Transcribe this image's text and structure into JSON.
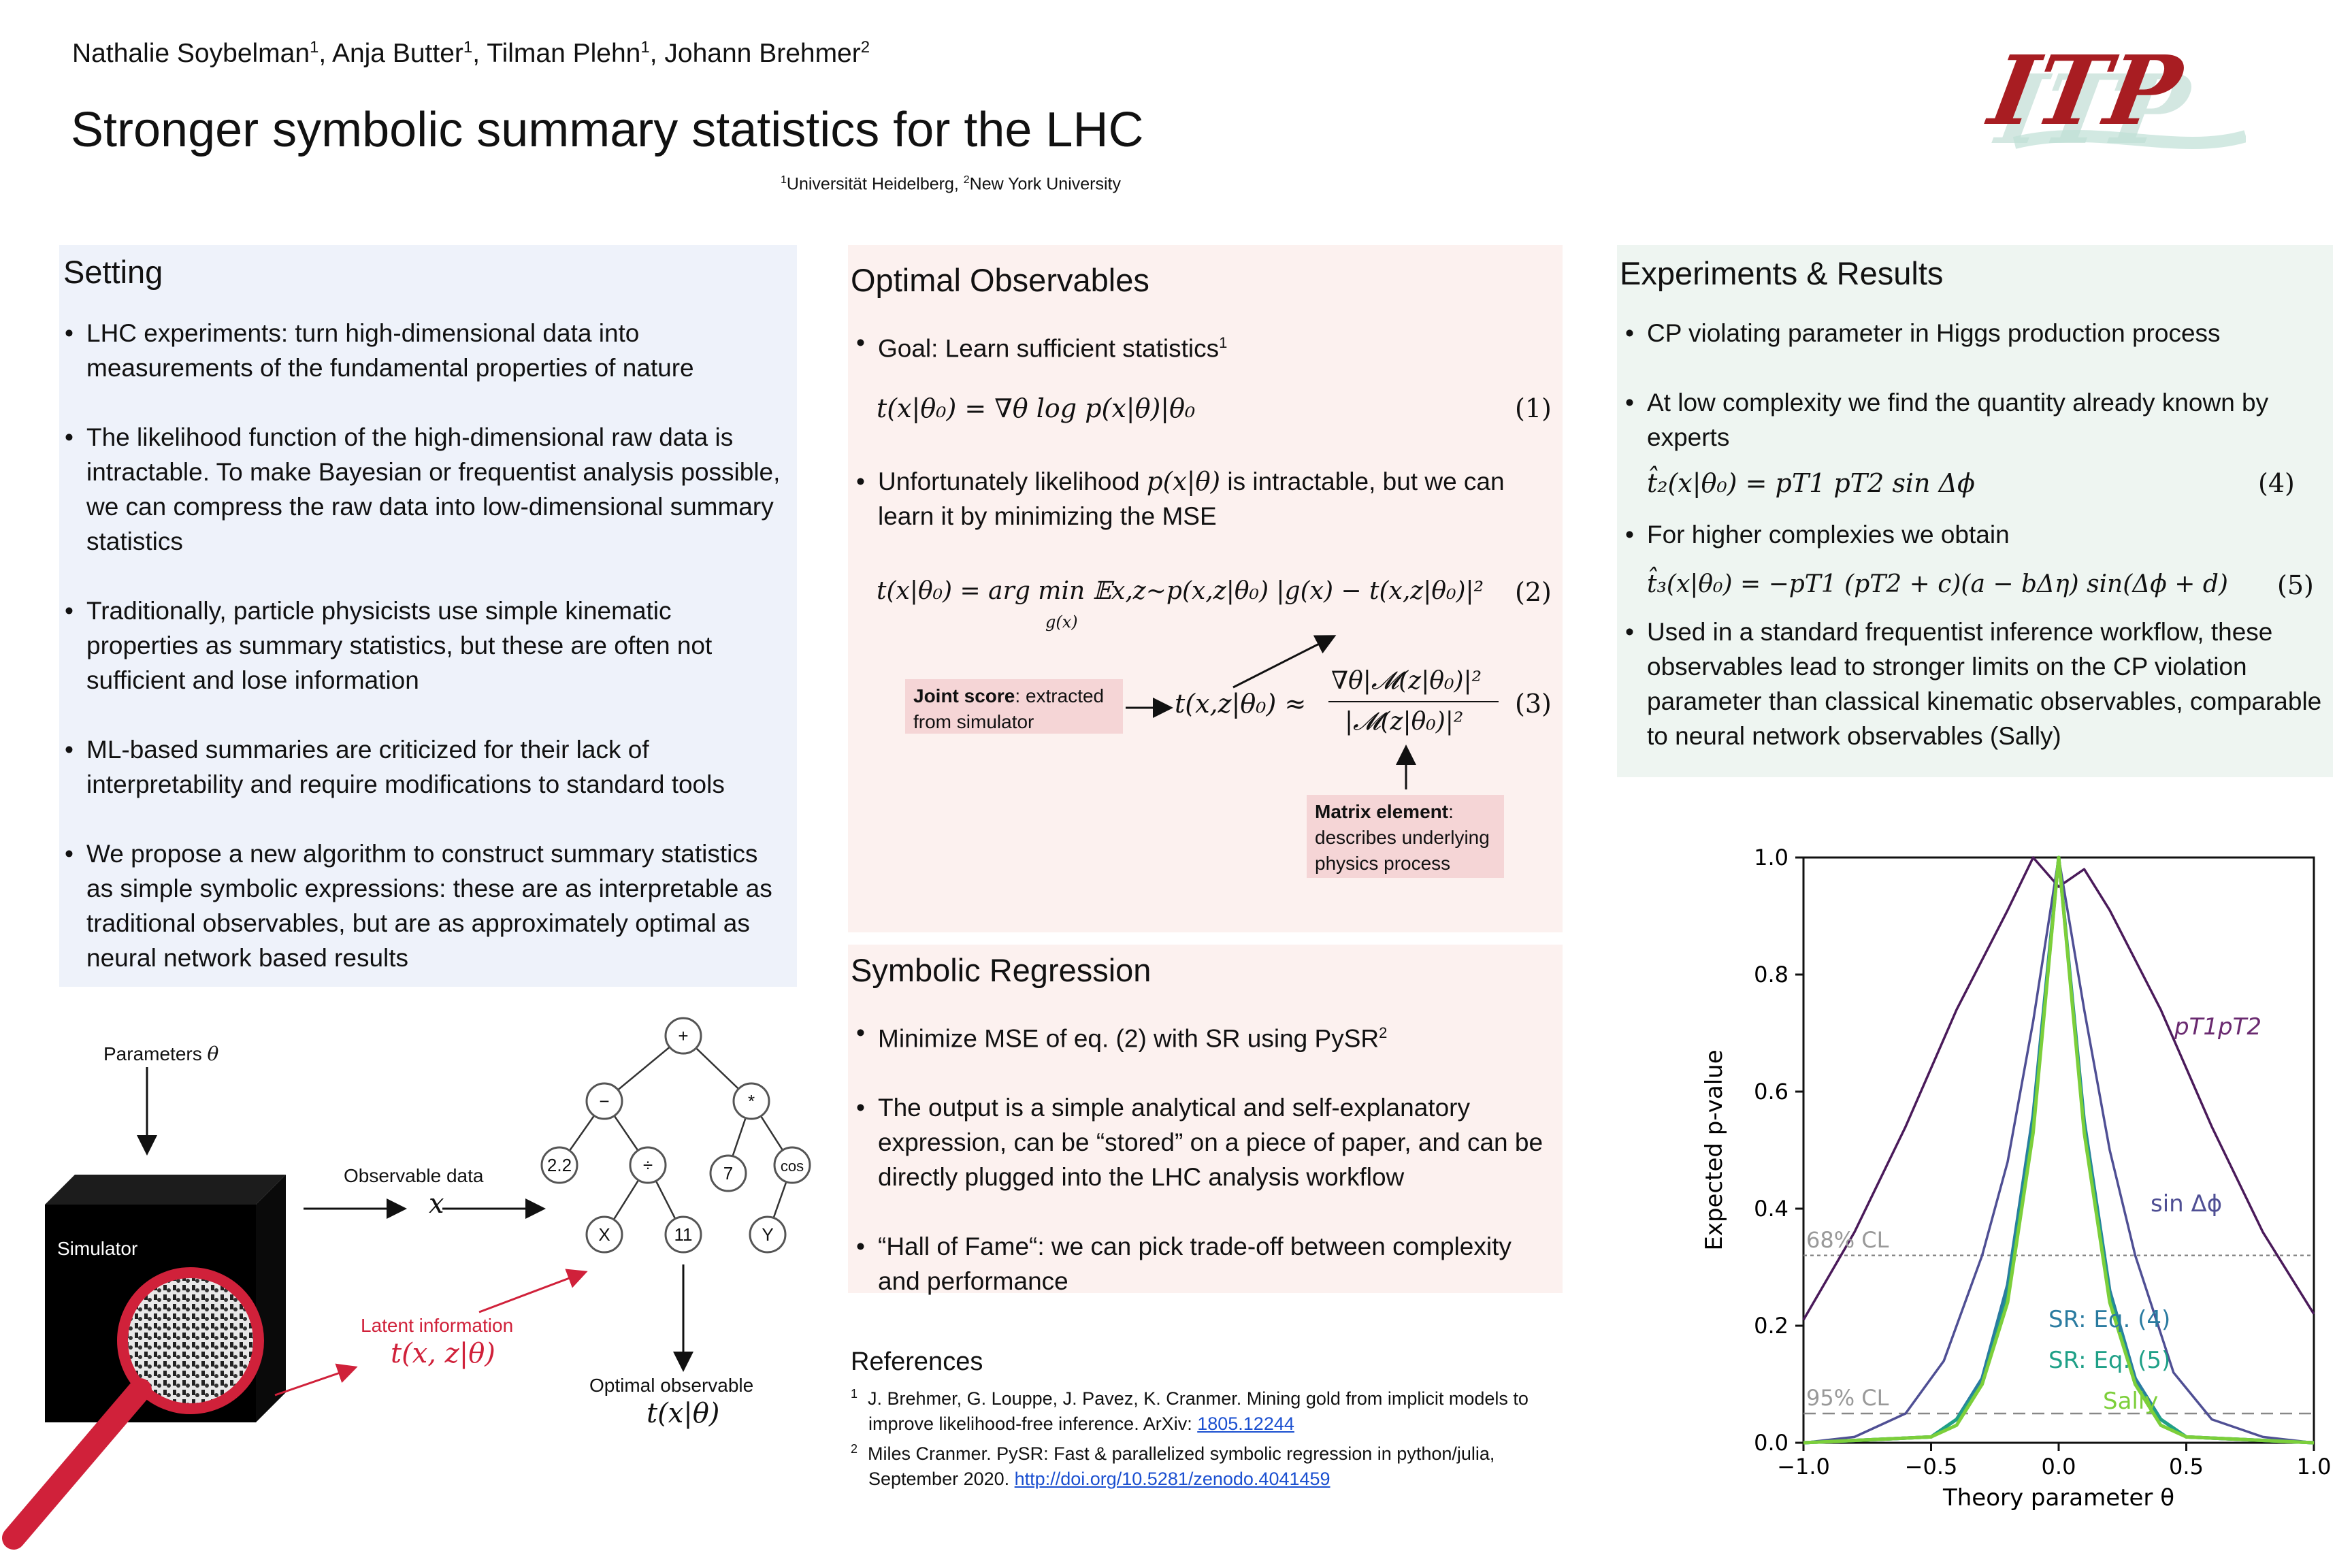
{
  "header": {
    "authors": [
      {
        "name": "Nathalie Soybelman",
        "aff": "1"
      },
      {
        "name": "Anja Butter",
        "aff": "1"
      },
      {
        "name": "Tilman Plehn",
        "aff": "1"
      },
      {
        "name": "Johann Brehmer",
        "aff": "2"
      }
    ],
    "title": "Stronger symbolic summary statistics for the LHC",
    "affiliations": [
      {
        "mark": "1",
        "name": "Universität Heidelberg"
      },
      {
        "mark": "2",
        "name": "New York University"
      }
    ],
    "logo_text": "ITP"
  },
  "setting": {
    "heading": "Setting",
    "bullets": [
      "LHC experiments: turn high-dimensional data into measurements of the fundamental properties of nature",
      "The likelihood function of the high-dimensional raw data is intractable. To make Bayesian or frequentist analysis possible, we can compress the raw data into low-dimensional summary statistics",
      "Traditionally, particle physicists use simple kinematic properties as summary statistics, but these are often not sufficient and lose information",
      "ML-based summaries are criticized for their lack of interpretability and require modifications to standard tools",
      "We propose a new algorithm to construct summary statistics as simple symbolic expressions: these are as interpretable as traditional observables, but are as approximately optimal as neural network based results"
    ]
  },
  "optimal": {
    "heading": "Optimal Observables",
    "goal": "Goal: Learn sufficient statistics",
    "goal_ref": "1",
    "eq1": "t(x|θ₀) = ∇θ log p(x|θ)|θ₀",
    "eq1_num": "(1)",
    "unfortunately_a": "Unfortunately likelihood",
    "unfortunately_math": "p(x|θ)",
    "unfortunately_b": "is intractable, but we can learn it by minimizing the MSE",
    "eq2": "t(x|θ₀) = arg min 𝔼x,z∼p(x,z|θ₀) |g(x) − t(x,z|θ₀)|²",
    "eq2_sub": "g(x)",
    "eq2_num": "(2)",
    "eq3_lhs": "t(x,z|θ₀) ≈",
    "eq3_num_top": "∇θ|𝓜(z|θ₀)|²",
    "eq3_den": "|𝓜(z|θ₀)|²",
    "eq3_num": "(3)",
    "joint_score_bold": "Joint score",
    "joint_score_rest": ": extracted from simulator",
    "matrix_bold": "Matrix element",
    "matrix_rest": ": describes underlying physics process"
  },
  "symbolic": {
    "heading": "Symbolic Regression",
    "bullets": [
      {
        "text": "Minimize MSE of eq. (2) with SR using PySR",
        "sup": "2"
      },
      {
        "text": "The output is a simple analytical and self-explanatory expression, can be “stored” on a piece of paper, and can be directly plugged into the LHC analysis workflow",
        "sup": ""
      },
      {
        "text": "“Hall of Fame“: we can pick trade-off between complexity and performance",
        "sup": ""
      }
    ]
  },
  "references": {
    "heading": "References",
    "items": [
      {
        "mark": "1",
        "text": "J. Brehmer, G. Louppe, J. Pavez, K. Cranmer. Mining gold from implicit models to improve likelihood-free inference. ArXiv: ",
        "link": "1805.12244"
      },
      {
        "mark": "2",
        "text": "Miles Cranmer. PySR: Fast & parallelized symbolic regression in python/julia, September 2020. ",
        "link": "http://doi.org/10.5281/zenodo.4041459"
      }
    ]
  },
  "results": {
    "heading": "Experiments & Results",
    "b1": "CP violating parameter in Higgs production process",
    "b2": "At low complexity we find the quantity already known by experts",
    "eq4": "t̂₂(x|θ₀) = pT1 pT2 sin Δϕ",
    "eq4_num": "(4)",
    "b3": "For higher complexies we obtain",
    "eq5": "t̂₃(x|θ₀) = −pT1 (pT2 + c)(a − bΔη) sin(Δϕ + d)",
    "eq5_num": "(5)",
    "b4": "Used in a standard frequentist inference workflow, these observables lead to stronger limits on the CP violation parameter than classical kinematic observables, comparable to neural network observables (Sally)"
  },
  "diagram": {
    "parameters_label": "Parameters",
    "parameters_math": "θ",
    "simulator_label": "Simulator",
    "observable_label": "Observable data",
    "observable_math": "x",
    "latent_label": "Latent information",
    "latent_math": "t(x, z|θ)",
    "optimal_label": "Optimal observable",
    "optimal_math": "t(x|θ)",
    "tree_nodes": [
      "+",
      "−",
      "*",
      "2.2",
      "÷",
      "7",
      "cos",
      "X",
      "11",
      "Y"
    ],
    "colors": {
      "red": "#d0213a",
      "black": "#000000"
    }
  },
  "chart_data": {
    "type": "line",
    "xlabel": "Theory parameter θ",
    "ylabel": "Expected p-value",
    "xlim": [
      -1.0,
      1.0
    ],
    "ylim": [
      0.0,
      1.0
    ],
    "xticks": [
      "−1.0",
      "−0.5",
      "0.0",
      "0.5",
      "1.0"
    ],
    "yticks": [
      "0.0",
      "0.2",
      "0.4",
      "0.6",
      "0.8",
      "1.0"
    ],
    "hlines": [
      {
        "label": "68% CL",
        "y": 0.32
      },
      {
        "label": "95% CL",
        "y": 0.05
      }
    ],
    "series": [
      {
        "name": "pT1pT2",
        "color": "#4a1a5a",
        "x": [
          -1.0,
          -0.8,
          -0.6,
          -0.4,
          -0.2,
          -0.1,
          0.0,
          0.1,
          0.2,
          0.4,
          0.6,
          0.8,
          1.0
        ],
        "y": [
          0.21,
          0.36,
          0.54,
          0.74,
          0.91,
          1.0,
          0.95,
          0.98,
          0.91,
          0.74,
          0.54,
          0.36,
          0.22
        ]
      },
      {
        "name": "sin Δϕ",
        "color": "#4f4f94",
        "x": [
          -1.0,
          -0.8,
          -0.6,
          -0.45,
          -0.3,
          -0.2,
          -0.1,
          0.0,
          0.1,
          0.2,
          0.3,
          0.45,
          0.6,
          0.8,
          1.0
        ],
        "y": [
          0.0,
          0.01,
          0.05,
          0.14,
          0.32,
          0.48,
          0.72,
          1.0,
          0.74,
          0.5,
          0.32,
          0.12,
          0.04,
          0.01,
          0.0
        ]
      },
      {
        "name": "SR: Eq. (4)",
        "color": "#2a7ba0",
        "x": [
          -1.0,
          -0.5,
          -0.4,
          -0.3,
          -0.2,
          -0.1,
          0.0,
          0.1,
          0.2,
          0.3,
          0.4,
          0.5,
          1.0
        ],
        "y": [
          0.0,
          0.01,
          0.04,
          0.11,
          0.27,
          0.56,
          1.0,
          0.55,
          0.26,
          0.11,
          0.04,
          0.01,
          0.0
        ]
      },
      {
        "name": "SR: Eq. (5)",
        "color": "#1fa087",
        "x": [
          -1.0,
          -0.5,
          -0.4,
          -0.3,
          -0.2,
          -0.1,
          0.0,
          0.1,
          0.2,
          0.3,
          0.4,
          0.5,
          1.0
        ],
        "y": [
          0.0,
          0.01,
          0.04,
          0.1,
          0.25,
          0.54,
          1.0,
          0.54,
          0.25,
          0.1,
          0.04,
          0.01,
          0.0
        ]
      },
      {
        "name": "Sally",
        "color": "#7ccf3a",
        "x": [
          -1.0,
          -0.5,
          -0.4,
          -0.3,
          -0.2,
          -0.1,
          0.0,
          0.1,
          0.2,
          0.3,
          0.4,
          0.5,
          1.0
        ],
        "y": [
          0.0,
          0.01,
          0.03,
          0.1,
          0.24,
          0.53,
          1.0,
          0.53,
          0.24,
          0.1,
          0.03,
          0.01,
          0.0
        ]
      }
    ],
    "series_labels": [
      {
        "text": "pT1pT2",
        "color": "#6a2a70"
      },
      {
        "text": "sin Δϕ",
        "color": "#4f4f94"
      },
      {
        "text": "SR: Eq. (4)",
        "color": "#2a7ba0"
      },
      {
        "text": "SR: Eq. (5)",
        "color": "#1fa087"
      },
      {
        "text": "Sally",
        "color": "#7ccf3a"
      }
    ]
  }
}
